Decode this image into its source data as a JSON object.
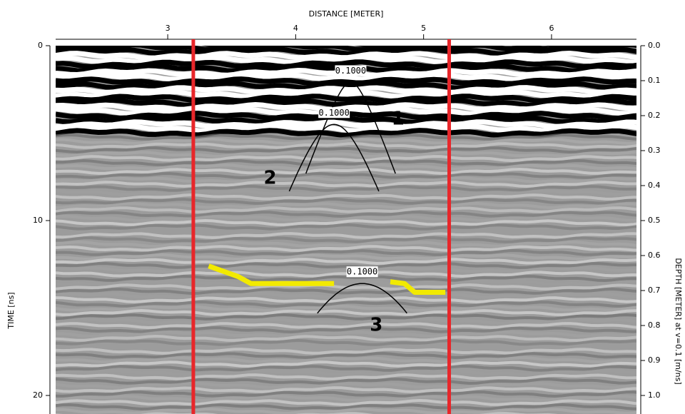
{
  "chart_data": {
    "type": "radargram",
    "title": "DISTANCE [METER]",
    "y_label": "TIME [ns]",
    "y2_label": "DEPTH [METER] at v=0.1 [m/ns]",
    "xlim": [
      2.124,
      6.664
    ],
    "xticks": [
      3,
      4,
      5,
      6
    ],
    "ylim": [
      0,
      21.06
    ],
    "yticks": [
      0,
      10,
      20
    ],
    "y2lim": [
      0,
      1.053
    ],
    "y2ticks": [
      {
        "value": 0,
        "label": "0.0"
      },
      0.1,
      0.2,
      0.3,
      0.4,
      0.5,
      0.6,
      0.7,
      0.8,
      0.9,
      {
        "value": 1,
        "label": "1.0"
      }
    ],
    "markers": {
      "color": "#e8262a",
      "values": [
        3.2,
        5.2
      ]
    },
    "hyperbolas": [
      {
        "label": "0.1000",
        "velocity": 0.1,
        "x0": 4.43,
        "t0": 2.1,
        "x_range": [
          4.08,
          4.78
        ]
      },
      {
        "label": "0.1000",
        "velocity": 0.1,
        "x0": 4.3,
        "t0": 4.5,
        "x_range": [
          3.95,
          4.65
        ]
      },
      {
        "label": "0.1000",
        "velocity": 0.1,
        "x0": 4.52,
        "t0": 13.6,
        "x_range": [
          4.17,
          4.87
        ]
      }
    ],
    "series": [
      {
        "color": "#f2ea00",
        "x": [
          3.32,
          3.55,
          3.65,
          4.3
        ],
        "values": [
          12.6,
          13.2,
          13.6,
          13.6
        ]
      },
      {
        "color": "#f2ea00",
        "x": [
          4.74,
          4.85,
          4.93,
          5.17
        ],
        "values": [
          13.5,
          13.6,
          14.1,
          14.1
        ]
      }
    ],
    "annotations": [
      {
        "text": "1",
        "x": 4.8,
        "y": 4.2,
        "color": "#e8262a"
      },
      {
        "text": "2",
        "x": 3.8,
        "y": 7.6,
        "color": "#e8262a"
      },
      {
        "text": "3",
        "x": 4.63,
        "y": 16.0,
        "color": "#e8262a"
      }
    ]
  }
}
